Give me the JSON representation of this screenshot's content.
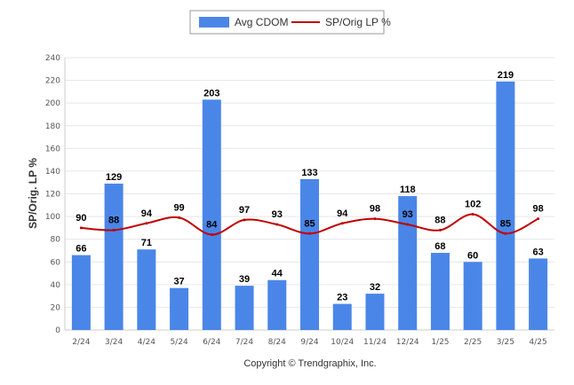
{
  "chart_data": {
    "type": "bar",
    "categories": [
      "2/24",
      "3/24",
      "4/24",
      "5/24",
      "6/24",
      "7/24",
      "8/24",
      "9/24",
      "10/24",
      "11/24",
      "12/24",
      "1/25",
      "2/25",
      "3/25",
      "4/25"
    ],
    "series": [
      {
        "name": "Avg CDOM",
        "type": "bar",
        "color": "#4a86e8",
        "values": [
          66,
          129,
          71,
          37,
          203,
          39,
          44,
          133,
          23,
          32,
          118,
          68,
          60,
          219,
          63
        ]
      },
      {
        "name": "SP/Orig LP %",
        "type": "line",
        "color": "#c00000",
        "values": [
          90,
          88,
          94,
          99,
          84,
          97,
          93,
          85,
          94,
          98,
          93,
          88,
          102,
          85,
          98
        ]
      }
    ],
    "ylabel": "SP/Orig. LP %",
    "ylim": [
      0,
      240
    ],
    "yticks": [
      0,
      20,
      40,
      60,
      80,
      100,
      120,
      140,
      160,
      180,
      200,
      220,
      240
    ],
    "grid": true,
    "legend_position": "top-center",
    "copyright": "Copyright © Trendgraphix, Inc."
  }
}
